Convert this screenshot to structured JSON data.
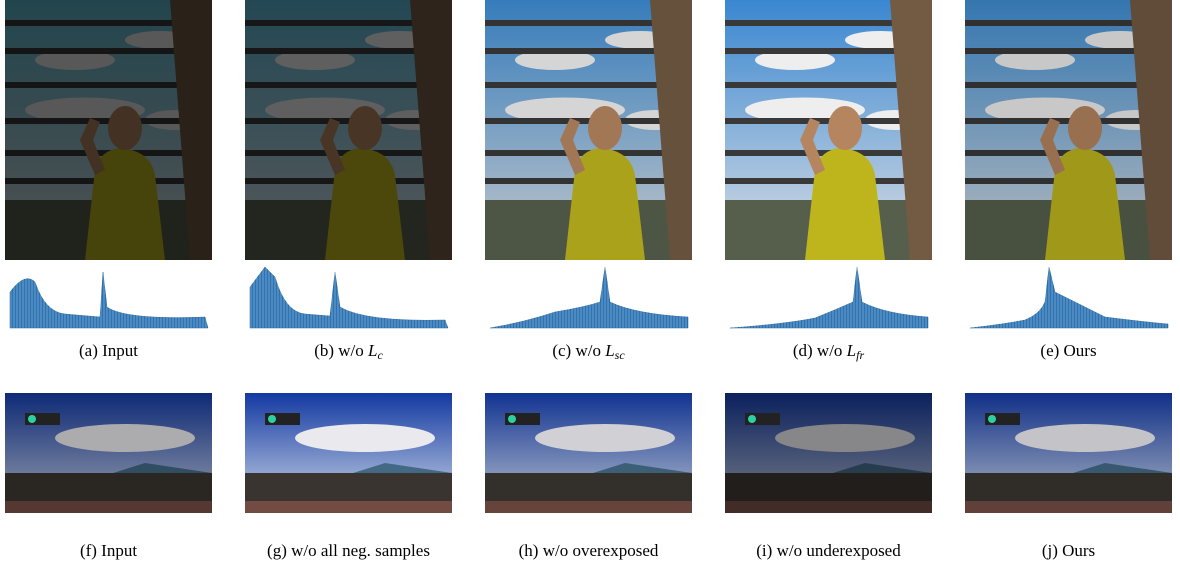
{
  "figure": {
    "rows": [
      {
        "captions": [
          {
            "tag": "(a)",
            "text": "Input"
          },
          {
            "tag": "(b)",
            "text": "w/o",
            "math": "L",
            "sub": "c"
          },
          {
            "tag": "(c)",
            "text": "w/o",
            "math": "L",
            "sub": "sc"
          },
          {
            "tag": "(d)",
            "text": "w/o",
            "math": "L",
            "sub": "fr"
          },
          {
            "tag": "(e)",
            "text": "Ours"
          }
        ]
      },
      {
        "captions": [
          {
            "tag": "(f)",
            "text": "Input"
          },
          {
            "tag": "(g)",
            "text": "w/o all neg. samples"
          },
          {
            "tag": "(h)",
            "text": "w/o overexposed"
          },
          {
            "tag": "(i)",
            "text": "w/o underexposed"
          },
          {
            "tag": "(j)",
            "text": "Ours"
          }
        ]
      }
    ]
  }
}
